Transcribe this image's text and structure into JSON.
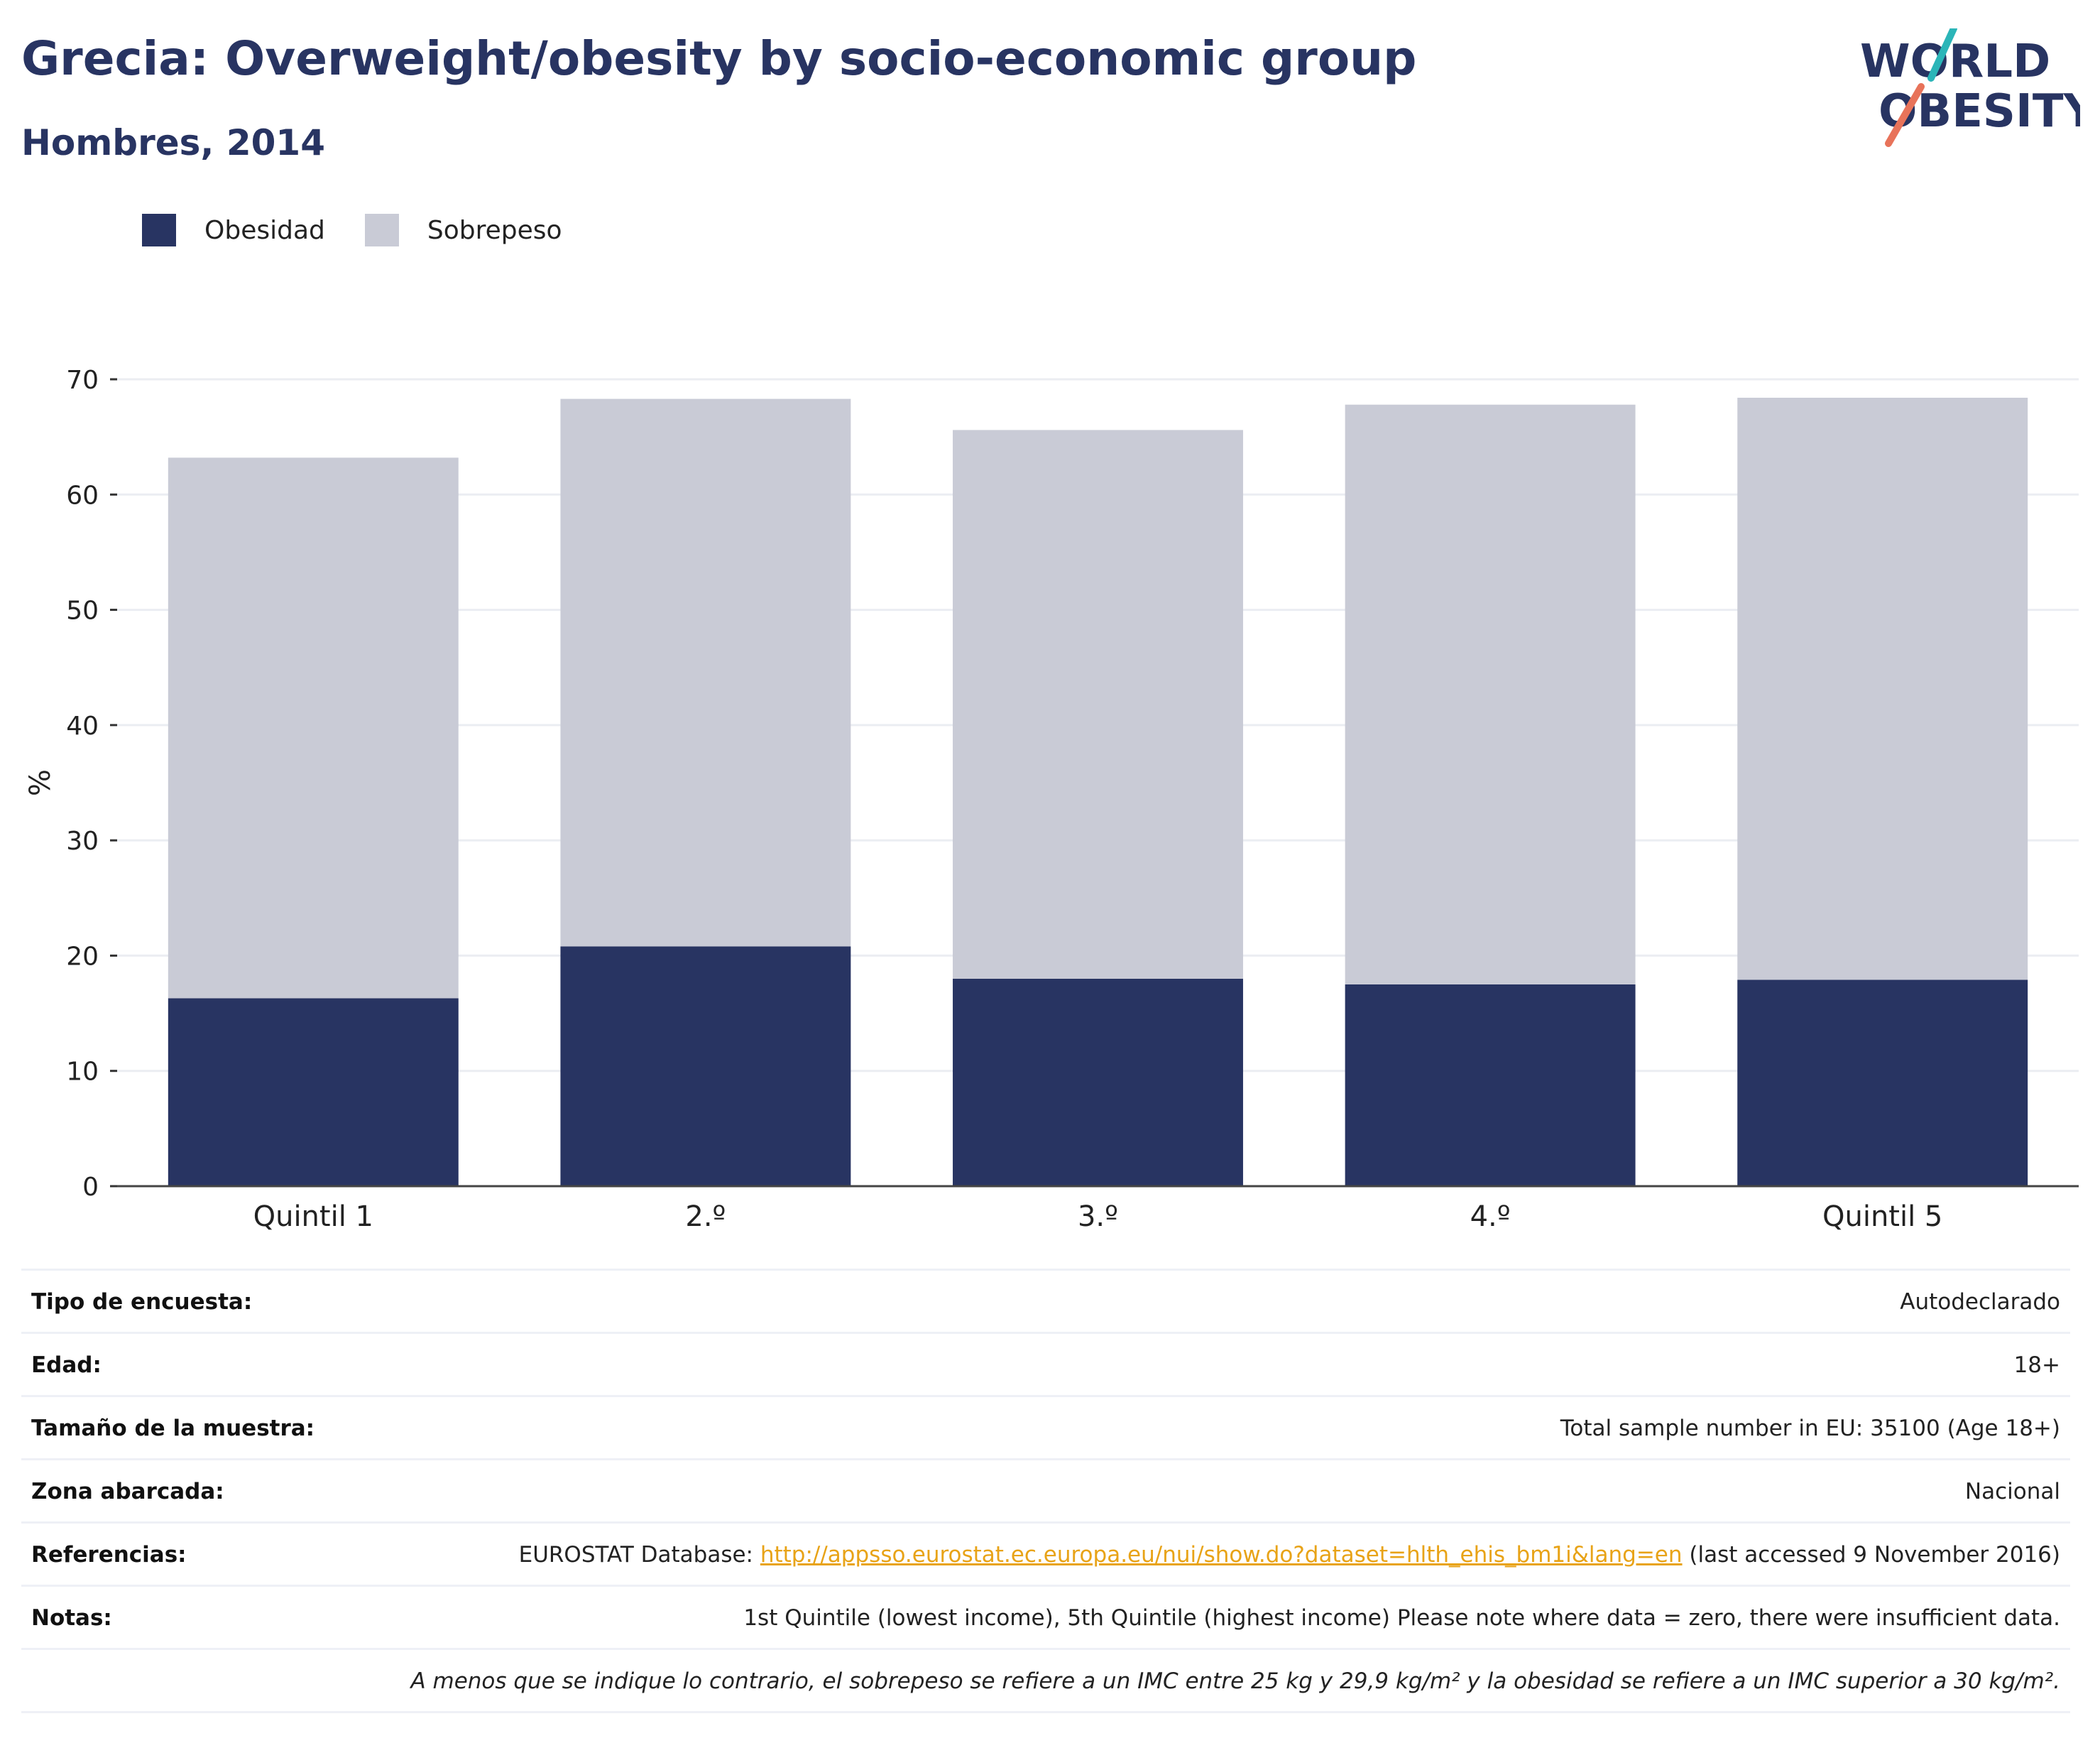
{
  "header": {
    "title": "Grecia: Overweight/obesity by socio-economic group",
    "subtitle": "Hombres, 2014"
  },
  "logo": {
    "line1": "WORLD",
    "line2": "OBESITY"
  },
  "colors": {
    "obesity": "#283462",
    "overweight": "#c9cbd6",
    "title": "#283462",
    "link": "#e8a317",
    "logo_teal": "#2bb5b8",
    "logo_coral": "#e8735a"
  },
  "legend": {
    "items": [
      {
        "label": "Obesidad"
      },
      {
        "label": "Sobrepeso"
      }
    ]
  },
  "chart_data": {
    "type": "bar",
    "stacked": true,
    "categories": [
      "Quintil 1",
      "2.º",
      "3.º",
      "4.º",
      "Quintil 5"
    ],
    "series": [
      {
        "name": "Obesidad",
        "values": [
          16.3,
          20.8,
          18.0,
          17.5,
          17.9
        ]
      },
      {
        "name": "Sobrepeso",
        "values": [
          46.9,
          47.5,
          47.6,
          50.3,
          50.5
        ]
      }
    ],
    "title": "Grecia: Overweight/obesity by socio-economic group",
    "subtitle": "Hombres, 2014",
    "xlabel": "",
    "ylabel": "%",
    "ylim": [
      0,
      70
    ],
    "yticks": [
      0,
      10,
      20,
      30,
      40,
      50,
      60,
      70
    ],
    "grid": true,
    "legend_position": "top-left"
  },
  "info": {
    "rows": [
      {
        "label": "Tipo de encuesta:",
        "value": "Autodeclarado"
      },
      {
        "label": "Edad:",
        "value": "18+"
      },
      {
        "label": "Tamaño de la muestra:",
        "value": "Total sample number in EU: 35100 (Age 18+)"
      },
      {
        "label": "Zona abarcada:",
        "value": "Nacional"
      },
      {
        "label": "Notas:",
        "value": "1st Quintile (lowest income), 5th Quintile (highest income) Please note where data = zero, there were insufficient data."
      }
    ],
    "references": {
      "label": "Referencias:",
      "prefix": "EUROSTAT Database: ",
      "link": "http://appsso.eurostat.ec.europa.eu/nui/show.do?dataset=hlth_ehis_bm1i&lang=en",
      "suffix": " (last accessed 9 November 2016)"
    },
    "footnote": "A menos que se indique lo contrario, el sobrepeso se refiere a un IMC entre 25 kg y 29,9 kg/m² y la obesidad se refiere a un IMC superior a 30 kg/m²."
  }
}
